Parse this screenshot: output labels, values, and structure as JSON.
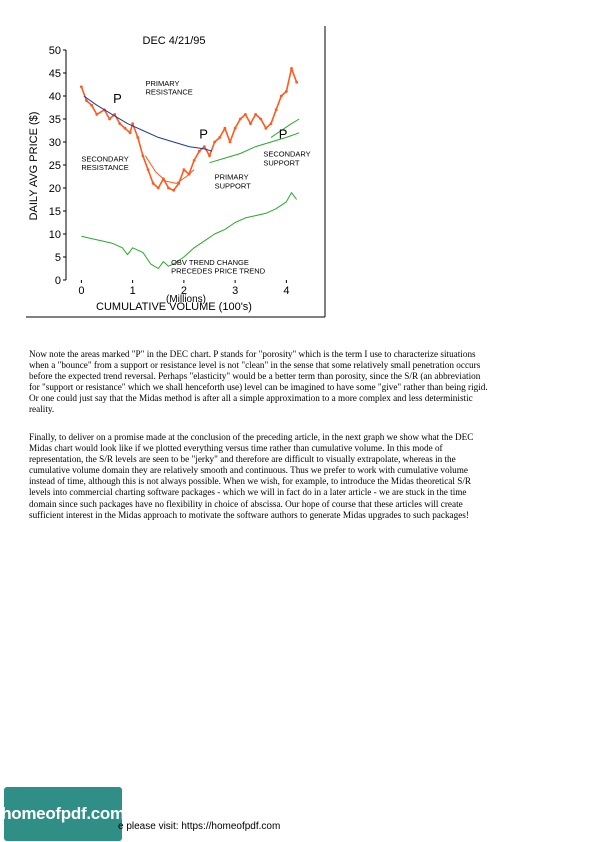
{
  "chart_data": {
    "type": "line",
    "title": "DEC   4/21/95",
    "xlabel": "CUMULATIVE VOLUME (100's)",
    "xlabel_unit": "(Millions)",
    "ylabel": "DAILY AVG PRICE ($)",
    "xlim": [
      -0.3,
      4.5
    ],
    "ylim": [
      0,
      50
    ],
    "x_ticks": [
      "0",
      "1",
      "2",
      "3",
      "4"
    ],
    "y_ticks": [
      "0",
      "5",
      "10",
      "15",
      "20",
      "25",
      "30",
      "35",
      "40",
      "45",
      "50"
    ],
    "grid": false,
    "series": [
      {
        "color": "#ff5a1f",
        "x": [
          0.0,
          0.1,
          0.2,
          0.3,
          0.45,
          0.55,
          0.65,
          0.75,
          0.85,
          0.95,
          1.0,
          1.1,
          1.2,
          1.3,
          1.4,
          1.5,
          1.6,
          1.7,
          1.8,
          1.9,
          2.0,
          2.1,
          2.2,
          2.3,
          2.4,
          2.5,
          2.6,
          2.7,
          2.8,
          2.9,
          3.0,
          3.1,
          3.2,
          3.3,
          3.4,
          3.5,
          3.6,
          3.7,
          3.8,
          3.9,
          4.0,
          4.1,
          4.2
        ],
        "values": [
          42,
          39,
          38,
          36,
          37,
          35,
          36,
          34,
          33,
          32,
          34,
          31,
          27,
          24,
          21,
          20,
          22,
          20,
          19.5,
          21,
          24,
          23,
          26,
          28,
          29,
          27,
          30,
          31,
          33,
          30,
          33,
          35,
          36,
          34,
          36,
          35,
          33,
          34,
          37,
          40,
          41,
          46,
          43
        ]
      },
      {
        "color": "#1a3a9a",
        "x": [
          0.05,
          0.3,
          0.6,
          0.9,
          1.2,
          1.5,
          1.8,
          2.1,
          2.4,
          2.55
        ],
        "values": [
          40,
          38,
          36,
          34,
          32.5,
          31,
          30,
          29,
          28.5,
          28
        ]
      },
      {
        "color": "#2aa82a",
        "x": [
          0.0,
          0.2,
          0.4,
          0.6,
          0.8,
          0.9,
          1.0,
          1.2,
          1.35,
          1.5,
          1.6,
          1.7,
          1.8,
          2.0,
          2.2,
          2.4,
          2.6,
          2.8,
          3.0,
          3.2,
          3.4,
          3.6,
          3.8,
          4.0,
          4.1,
          4.2
        ],
        "values": [
          9.5,
          9,
          8.5,
          8,
          7,
          5.5,
          7,
          6,
          3.5,
          2.5,
          4,
          3,
          3.5,
          5,
          7,
          8.5,
          10,
          11,
          12.5,
          13.5,
          14,
          14.5,
          15.5,
          17,
          19,
          17.5
        ]
      },
      {
        "color": "#2aa82a",
        "x": [
          2.5,
          2.8,
          3.1,
          3.4,
          3.7,
          4.0,
          4.25
        ],
        "values": [
          25.5,
          26.5,
          27.5,
          29,
          30,
          31,
          32
        ]
      },
      {
        "color": "#2aa82a",
        "x": [
          3.7,
          3.9,
          4.1,
          4.25
        ],
        "values": [
          31,
          32.5,
          34,
          35
        ]
      },
      {
        "color": "#ff5a1f",
        "x": [
          1.25,
          1.45,
          1.65,
          1.85,
          2.05,
          2.2
        ],
        "values": [
          27,
          23.5,
          21.5,
          21,
          22.5,
          24
        ]
      }
    ],
    "annotations": [
      {
        "text": "PRIMARY",
        "x": 1.25,
        "y": 42.2
      },
      {
        "text": "RESISTANCE",
        "x": 1.25,
        "y": 40.3
      },
      {
        "text": "P",
        "x": 0.62,
        "y": 38.5
      },
      {
        "text": "P",
        "x": 2.3,
        "y": 30.8
      },
      {
        "text": "P",
        "x": 3.85,
        "y": 30.8
      },
      {
        "text": "SECONDARY",
        "x": 0.0,
        "y": 25.8
      },
      {
        "text": "RESISTANCE",
        "x": 0.0,
        "y": 23.9
      },
      {
        "text": "SECONDARY",
        "x": 3.55,
        "y": 26.8
      },
      {
        "text": "SUPPORT",
        "x": 3.55,
        "y": 24.9
      },
      {
        "text": "PRIMARY",
        "x": 2.6,
        "y": 21.8
      },
      {
        "text": "SUPPORT",
        "x": 2.6,
        "y": 19.9
      },
      {
        "text": "OBV TREND CHANGE",
        "x": 1.75,
        "y": 3.3
      },
      {
        "text": "PRECEDES PRICE TREND",
        "x": 1.75,
        "y": 1.4
      }
    ]
  },
  "body": {
    "para1": "Now note the areas marked \"P\" in the DEC chart. P stands for \"porosity\" which is the term I use to characterize situations when a \"bounce\" from a support or resistance level is not \"clean\" in the sense that some relatively small penetration occurs before the expected trend reversal. Perhaps \"elasticity\" would be a better term than porosity, since the S/R (an abbreviation for \"support or resistance\" which we shall henceforth use) level can be imagined to have some \"give\" rather than being rigid. Or one could just say that the Midas method is after all a simple approximation to a more complex and less deterministic reality.",
    "para2": "Finally, to deliver on a promise made at the conclusion of the preceding article, in the next graph we show what the DEC Midas chart would look like if we plotted everything versus time rather than cumulative volume. In this mode of representation, the S/R levels are seen to be \"jerky\" and therefore are difficult to visually extrapolate, whereas in the cumulative volume domain they are relatively smooth and continuous. Thus we prefer to work with cumulative volume instead of time, although this is not always possible. When we wish, for example, to introduce the Midas theoretical S/R levels into commercial charting software packages - which we will in fact do in a later article - we are stuck in the time domain since such packages have no flexibility in choice of abscissa. Our hope of course that these articles will create sufficient interest in the Midas approach to motivate the software authors to generate Midas upgrades to such packages!"
  },
  "footer": {
    "logo_text": "homeofpdf.com",
    "visit_text": "e please visit: https://homeofpdf.com"
  }
}
